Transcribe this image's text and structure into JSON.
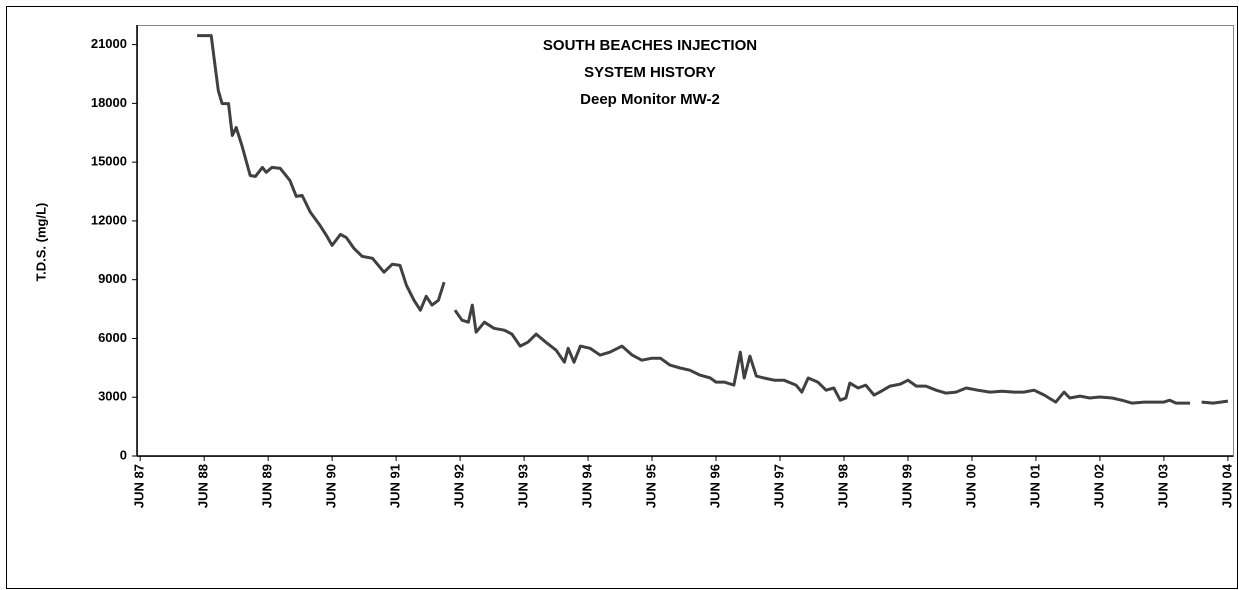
{
  "chart_data": {
    "type": "line",
    "title": [
      "SOUTH BEACHES INJECTION",
      "SYSTEM HISTORY",
      "Deep Monitor MW-2"
    ],
    "y_label": "T.D.S. (mg/L)",
    "color": "#404040",
    "xlim": [
      1987.45,
      2004.58
    ],
    "ylim": [
      0,
      22000
    ],
    "yticks": [
      0,
      3000,
      6000,
      9000,
      12000,
      15000,
      18000,
      21000
    ],
    "xticks": [
      {
        "value": 1987.5,
        "label": "JUN 87"
      },
      {
        "value": 1988.5,
        "label": "JUN 88"
      },
      {
        "value": 1989.5,
        "label": "JUN 89"
      },
      {
        "value": 1990.5,
        "label": "JUN 90"
      },
      {
        "value": 1991.5,
        "label": "JUN 91"
      },
      {
        "value": 1992.5,
        "label": "JUN 92"
      },
      {
        "value": 1993.5,
        "label": "JUN 93"
      },
      {
        "value": 1994.5,
        "label": "JUN 94"
      },
      {
        "value": 1995.5,
        "label": "JUN 95"
      },
      {
        "value": 1996.5,
        "label": "JUN 96"
      },
      {
        "value": 1997.5,
        "label": "JUN 97"
      },
      {
        "value": 1998.5,
        "label": "JUN 98"
      },
      {
        "value": 1999.5,
        "label": "JUN 99"
      },
      {
        "value": 2000.5,
        "label": "JUN 00"
      },
      {
        "value": 2001.5,
        "label": "JUN 01"
      },
      {
        "value": 2002.5,
        "label": "JUN 02"
      },
      {
        "value": 2003.5,
        "label": "JUN 03"
      },
      {
        "value": 2004.5,
        "label": "JUN 04"
      }
    ],
    "x": [
      1988.39,
      1988.61,
      1988.66,
      1988.72,
      1988.78,
      1988.88,
      1988.94,
      1989.0,
      1989.09,
      1989.22,
      1989.3,
      1989.41,
      1989.47,
      1989.56,
      1989.69,
      1989.84,
      1989.94,
      1990.03,
      1990.16,
      1990.31,
      1990.41,
      1990.5,
      1990.63,
      1990.72,
      1990.84,
      1990.97,
      1991.13,
      1991.31,
      1991.44,
      1991.56,
      1991.66,
      1991.78,
      1991.88,
      1991.97,
      1992.06,
      1992.16,
      1992.25,
      1992.33,
      1992.42,
      1992.53,
      1992.63,
      1992.69,
      1992.75,
      1992.88,
      1993.03,
      1993.19,
      1993.31,
      1993.44,
      1993.56,
      1993.69,
      1993.84,
      1994.0,
      1994.13,
      1994.19,
      1994.28,
      1994.38,
      1994.53,
      1994.69,
      1994.84,
      1995.03,
      1995.19,
      1995.34,
      1995.5,
      1995.63,
      1995.78,
      1995.94,
      1996.09,
      1996.25,
      1996.41,
      1996.5,
      1996.63,
      1996.78,
      1996.88,
      1996.94,
      1997.03,
      1997.13,
      1997.25,
      1997.41,
      1997.56,
      1997.75,
      1997.84,
      1997.94,
      1998.09,
      1998.22,
      1998.34,
      1998.44,
      1998.53,
      1998.59,
      1998.72,
      1998.84,
      1998.97,
      1999.06,
      1999.22,
      1999.38,
      1999.5,
      1999.63,
      1999.78,
      1999.94,
      2000.09,
      2000.25,
      2000.41,
      2000.59,
      2000.78,
      2000.97,
      2001.16,
      2001.31,
      2001.47,
      2001.63,
      2001.81,
      2001.94,
      2002.03,
      2002.19,
      2002.34,
      2002.5,
      2002.69,
      2002.84,
      2003.0,
      2003.19,
      2003.34,
      2003.5,
      2003.59,
      2003.69,
      2003.91,
      2003.97,
      2004.09,
      2004.27,
      2004.5
    ],
    "values": [
      21460,
      21460,
      20180,
      18650,
      17990,
      17990,
      16360,
      16770,
      15850,
      14320,
      14270,
      14730,
      14480,
      14730,
      14680,
      14070,
      13250,
      13300,
      12440,
      11770,
      11260,
      10750,
      11310,
      11160,
      10600,
      10190,
      10090,
      9380,
      9790,
      9730,
      8720,
      7950,
      7440,
      8150,
      7700,
      7950,
      8870,
      null,
      7440,
      6930,
      6830,
      7700,
      6320,
      6830,
      6520,
      6420,
      6220,
      5610,
      5810,
      6220,
      5810,
      5400,
      4790,
      5500,
      4790,
      5610,
      5500,
      5150,
      5300,
      5610,
      5150,
      4890,
      4990,
      4990,
      4640,
      4490,
      4380,
      4130,
      3980,
      3770,
      3770,
      3620,
      5300,
      3980,
      5100,
      4080,
      3980,
      3870,
      3870,
      3620,
      3260,
      3980,
      3770,
      3360,
      3470,
      2850,
      2960,
      3720,
      3470,
      3620,
      3110,
      3260,
      3570,
      3670,
      3870,
      3570,
      3570,
      3360,
      3210,
      3260,
      3470,
      3360,
      3260,
      3310,
      3260,
      3260,
      3360,
      3110,
      2750,
      3260,
      2960,
      3060,
      2960,
      3010,
      2960,
      2850,
      2700,
      2750,
      2750,
      2750,
      2850,
      2700,
      2700,
      null,
      2750,
      2700,
      2800
    ]
  }
}
